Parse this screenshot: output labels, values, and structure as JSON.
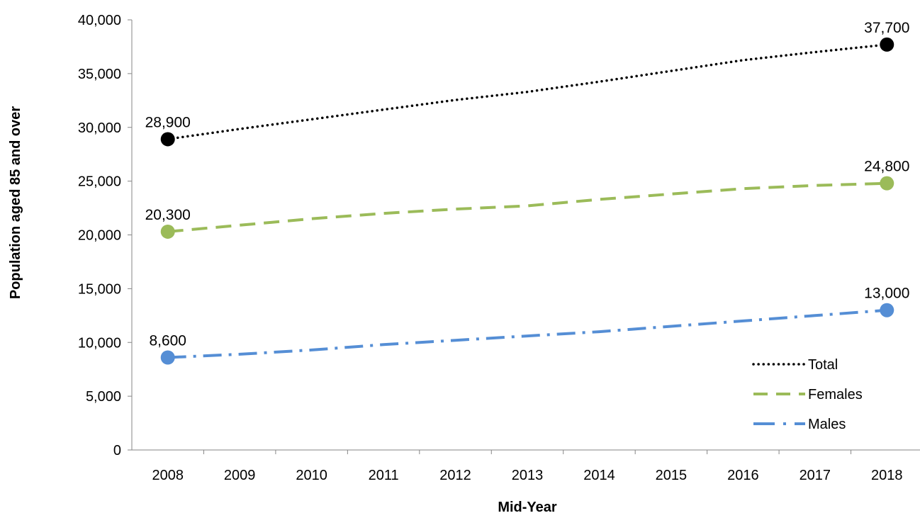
{
  "chart_data": {
    "type": "line",
    "title": "",
    "xlabel": "Mid-Year",
    "ylabel": "Population aged 85 and over",
    "categories": [
      "2008",
      "2009",
      "2010",
      "2011",
      "2012",
      "2013",
      "2014",
      "2015",
      "2016",
      "2017",
      "2018"
    ],
    "ylim": [
      0,
      40000
    ],
    "yticks": [
      0,
      5000,
      10000,
      15000,
      20000,
      25000,
      30000,
      35000,
      40000
    ],
    "ytick_labels": [
      "0",
      "5,000",
      "10,000",
      "15,000",
      "20,000",
      "25,000",
      "30,000",
      "35,000",
      "40,000"
    ],
    "grid": false,
    "legend_position": "bottom-right",
    "series": [
      {
        "name": "Total",
        "color": "#000000",
        "line_style": "dotted",
        "values": [
          28900,
          29850,
          30750,
          31650,
          32550,
          33300,
          34250,
          35250,
          36250,
          37000,
          37700
        ],
        "labels": {
          "0": "28,900",
          "10": "37,700"
        }
      },
      {
        "name": "Females",
        "color": "#9bbb59",
        "line_style": "dashed",
        "values": [
          20300,
          20900,
          21500,
          22000,
          22400,
          22700,
          23300,
          23800,
          24300,
          24600,
          24800
        ],
        "labels": {
          "0": "20,300",
          "10": "24,800"
        }
      },
      {
        "name": "Males",
        "color": "#558ed5",
        "line_style": "dash-dot",
        "values": [
          8600,
          8900,
          9300,
          9800,
          10200,
          10600,
          11000,
          11500,
          12000,
          12500,
          13000
        ],
        "labels": {
          "0": "8,600",
          "10": "13,000"
        }
      }
    ]
  }
}
